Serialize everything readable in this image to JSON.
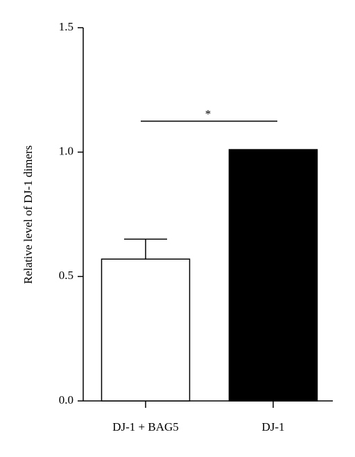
{
  "chart_data": {
    "type": "bar",
    "y_label": "Relative level of DJ-1 dimers",
    "categories": [
      "DJ-1 + BAG5",
      "DJ-1"
    ],
    "values": [
      0.57,
      1.01
    ],
    "errors": [
      0.08,
      null
    ],
    "colors": [
      "#ffffff",
      "#000000"
    ],
    "ylim": [
      0,
      1.5
    ],
    "yticks": [
      {
        "value": 0,
        "label": "0.0"
      },
      0.5,
      {
        "value": 1,
        "label": "1.0"
      },
      {
        "value": 1.5,
        "label": "1.5"
      }
    ],
    "annotation": "*"
  }
}
